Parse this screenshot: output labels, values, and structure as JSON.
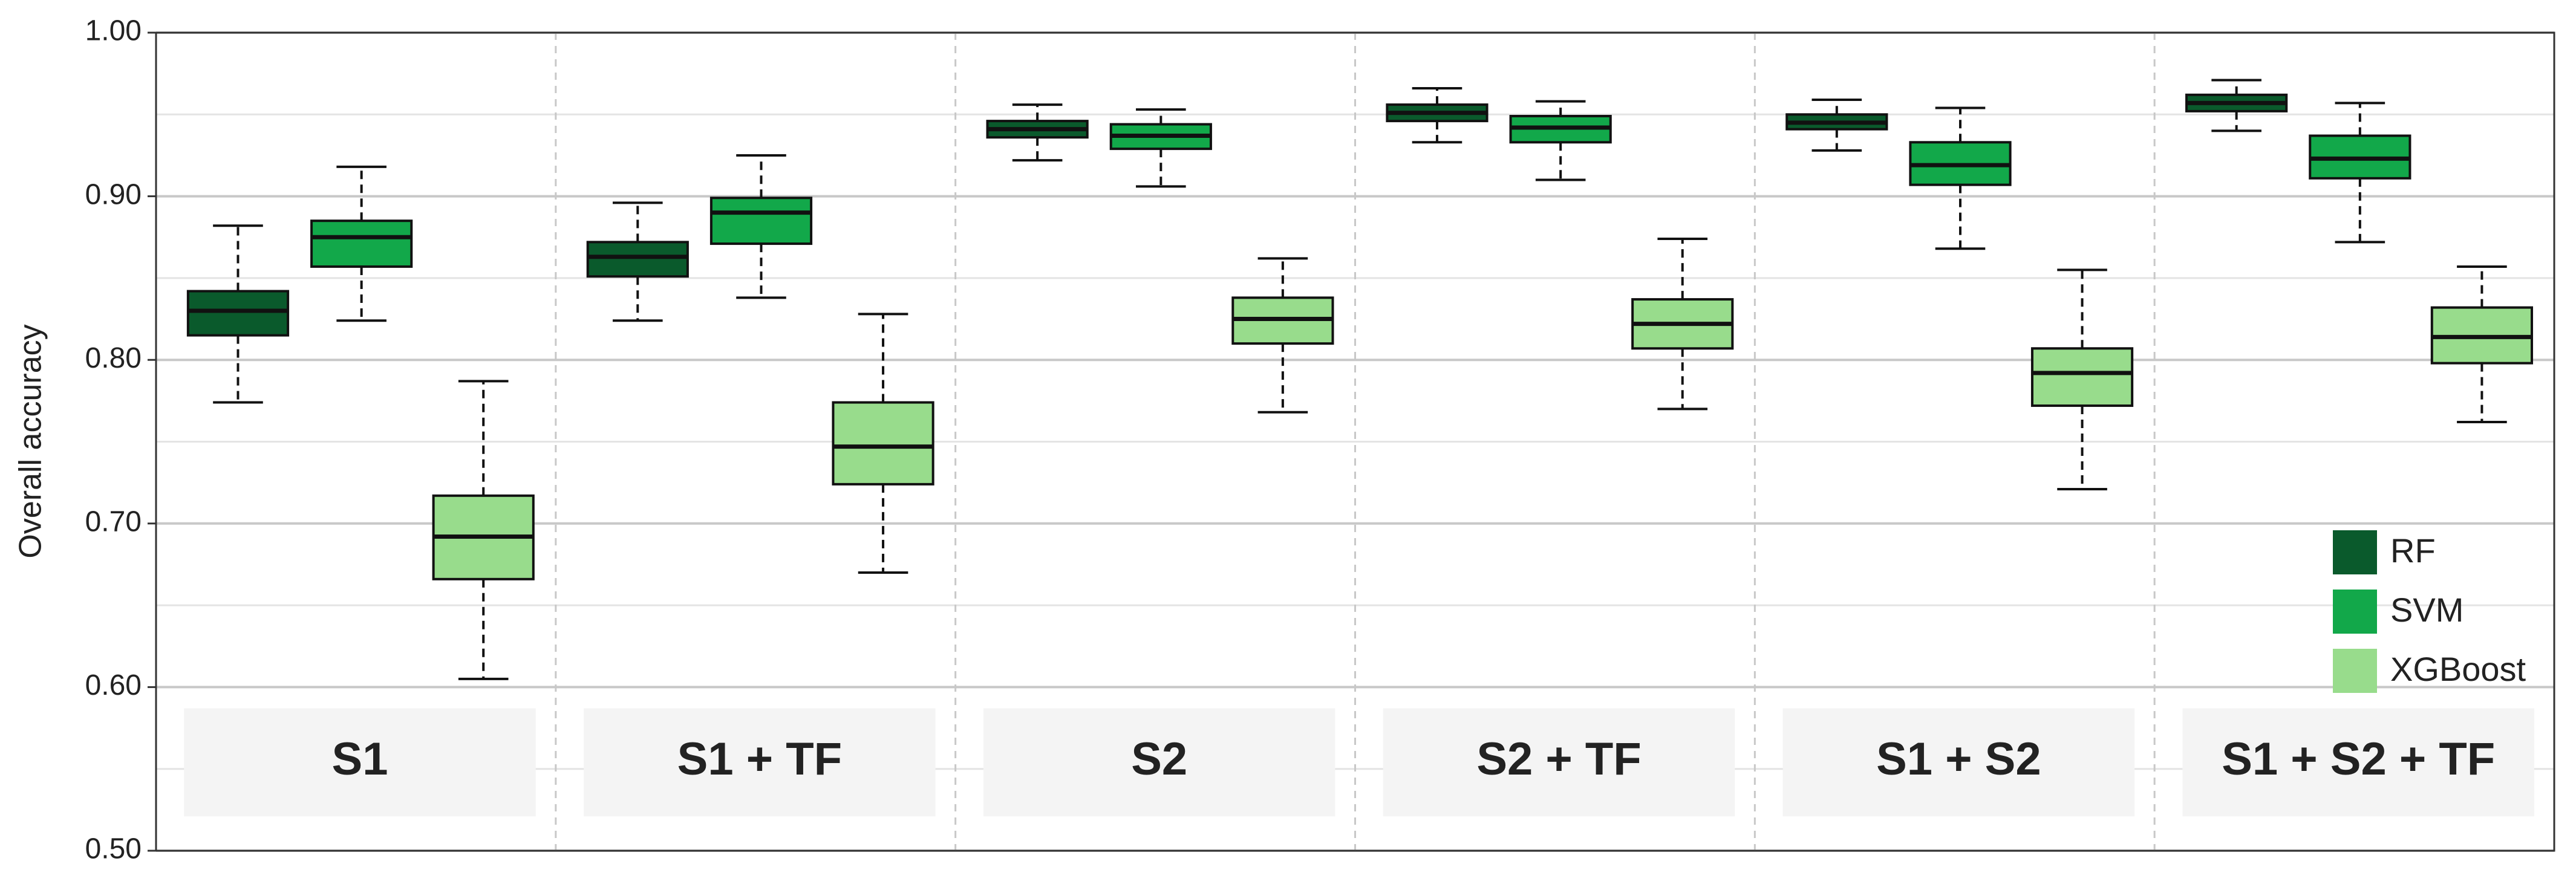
{
  "chart_data": {
    "type": "box",
    "y_label": "Overall accuracy",
    "categories": [
      "S1",
      "S1 + TF",
      "S2",
      "S2 + TF",
      "S1 + S2",
      "S1 + S2 + TF"
    ],
    "series": [
      {
        "name": "RF",
        "color": "#0a5a2c",
        "min": [
          0.774,
          0.824,
          0.922,
          0.933,
          0.928,
          0.94
        ],
        "q1": [
          0.815,
          0.851,
          0.936,
          0.946,
          0.941,
          0.952
        ],
        "median": [
          0.83,
          0.863,
          0.941,
          0.951,
          0.945,
          0.957
        ],
        "q3": [
          0.842,
          0.872,
          0.946,
          0.956,
          0.95,
          0.962
        ],
        "max": [
          0.882,
          0.896,
          0.956,
          0.966,
          0.959,
          0.971
        ]
      },
      {
        "name": "SVM",
        "color": "#12a84a",
        "min": [
          0.824,
          0.838,
          0.906,
          0.91,
          0.868,
          0.872
        ],
        "q1": [
          0.857,
          0.871,
          0.929,
          0.933,
          0.907,
          0.911
        ],
        "median": [
          0.875,
          0.89,
          0.937,
          0.942,
          0.919,
          0.923
        ],
        "q3": [
          0.885,
          0.899,
          0.944,
          0.949,
          0.933,
          0.937
        ],
        "max": [
          0.918,
          0.925,
          0.953,
          0.958,
          0.954,
          0.957
        ]
      },
      {
        "name": "XGBoost",
        "color": "#98dc8c",
        "min": [
          0.605,
          0.67,
          0.768,
          0.77,
          0.721,
          0.762
        ],
        "q1": [
          0.666,
          0.724,
          0.81,
          0.807,
          0.772,
          0.798
        ],
        "median": [
          0.692,
          0.747,
          0.825,
          0.822,
          0.792,
          0.814
        ],
        "q3": [
          0.717,
          0.774,
          0.838,
          0.837,
          0.807,
          0.832
        ],
        "max": [
          0.787,
          0.828,
          0.862,
          0.874,
          0.855,
          0.857
        ]
      }
    ],
    "ylim": [
      0.5,
      1.0
    ],
    "yticks": [
      {
        "value": 0.5,
        "label": "0.50"
      },
      {
        "value": 0.6,
        "label": "0.60"
      },
      {
        "value": 0.7,
        "label": "0.70"
      },
      {
        "value": 0.8,
        "label": "0.80"
      },
      {
        "value": 0.9,
        "label": "0.90"
      },
      {
        "value": 1.0,
        "label": "1.00"
      }
    ],
    "minor_yticks": [
      0.55,
      0.65,
      0.75,
      0.85,
      0.95
    ],
    "grid": true,
    "legend": "lower right"
  }
}
